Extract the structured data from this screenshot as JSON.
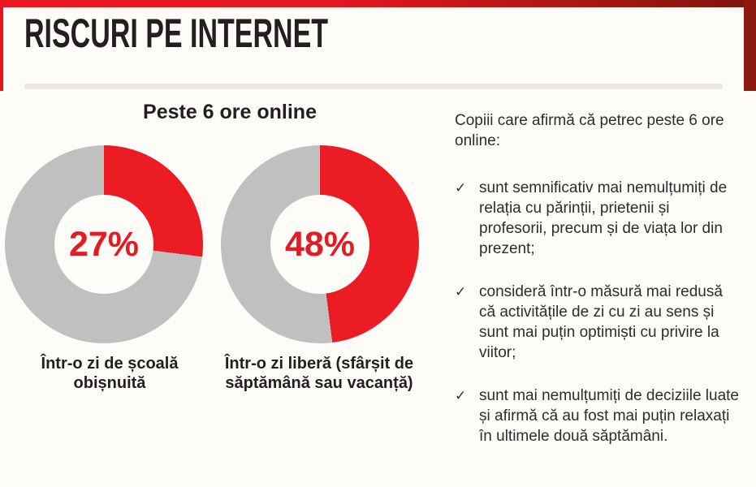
{
  "page": {
    "title": "RISCURI PE INTERNET",
    "colors": {
      "accent_red": "#E51620",
      "dark_red": "#8C1A11",
      "slice_red": "#EC1C24",
      "slice_gray": "#C0C0C0",
      "divider_beige": "#EAE7DC",
      "title_black": "#231F20"
    }
  },
  "chart_data": {
    "type": "pie",
    "subtype": "donut",
    "title": "Peste 6 ore online",
    "unit": "%",
    "layout": {
      "start_angle_deg": 0,
      "direction": "clockwise",
      "hole_ratio": 0.5,
      "legend": "none"
    },
    "charts": [
      {
        "caption": "Într-o zi de școală obișnuită",
        "center_label": "27%",
        "segments": [
          {
            "label": "peste 6 ore online",
            "value": 27,
            "color": "#EC1C24"
          },
          {
            "label": "rest",
            "value": 73,
            "color": "#C0C0C0"
          }
        ]
      },
      {
        "caption": "Într-o zi liberă (sfârșit de săptămână sau vacanță)",
        "center_label": "48%",
        "segments": [
          {
            "label": "peste 6 ore online",
            "value": 48,
            "color": "#EC1C24"
          },
          {
            "label": "rest",
            "value": 52,
            "color": "#C0C0C0"
          }
        ]
      }
    ]
  },
  "notes": {
    "intro": "Copiii care afirmă că petrec peste 6 ore online:",
    "bullet_icon": "✓",
    "bullets": [
      "sunt semnificativ mai nemulțumiți de relația cu părinții, prietenii și profesorii, precum și de viața lor din prezent;",
      "consideră într-o măsură mai redusă că activitățile de zi cu zi au sens și sunt mai puțin optimiști cu privire la viitor;",
      "sunt mai nemulțumiți de deciziile luate și afirmă că au fost mai puțin relaxați în ultimele două săptămâni."
    ]
  }
}
